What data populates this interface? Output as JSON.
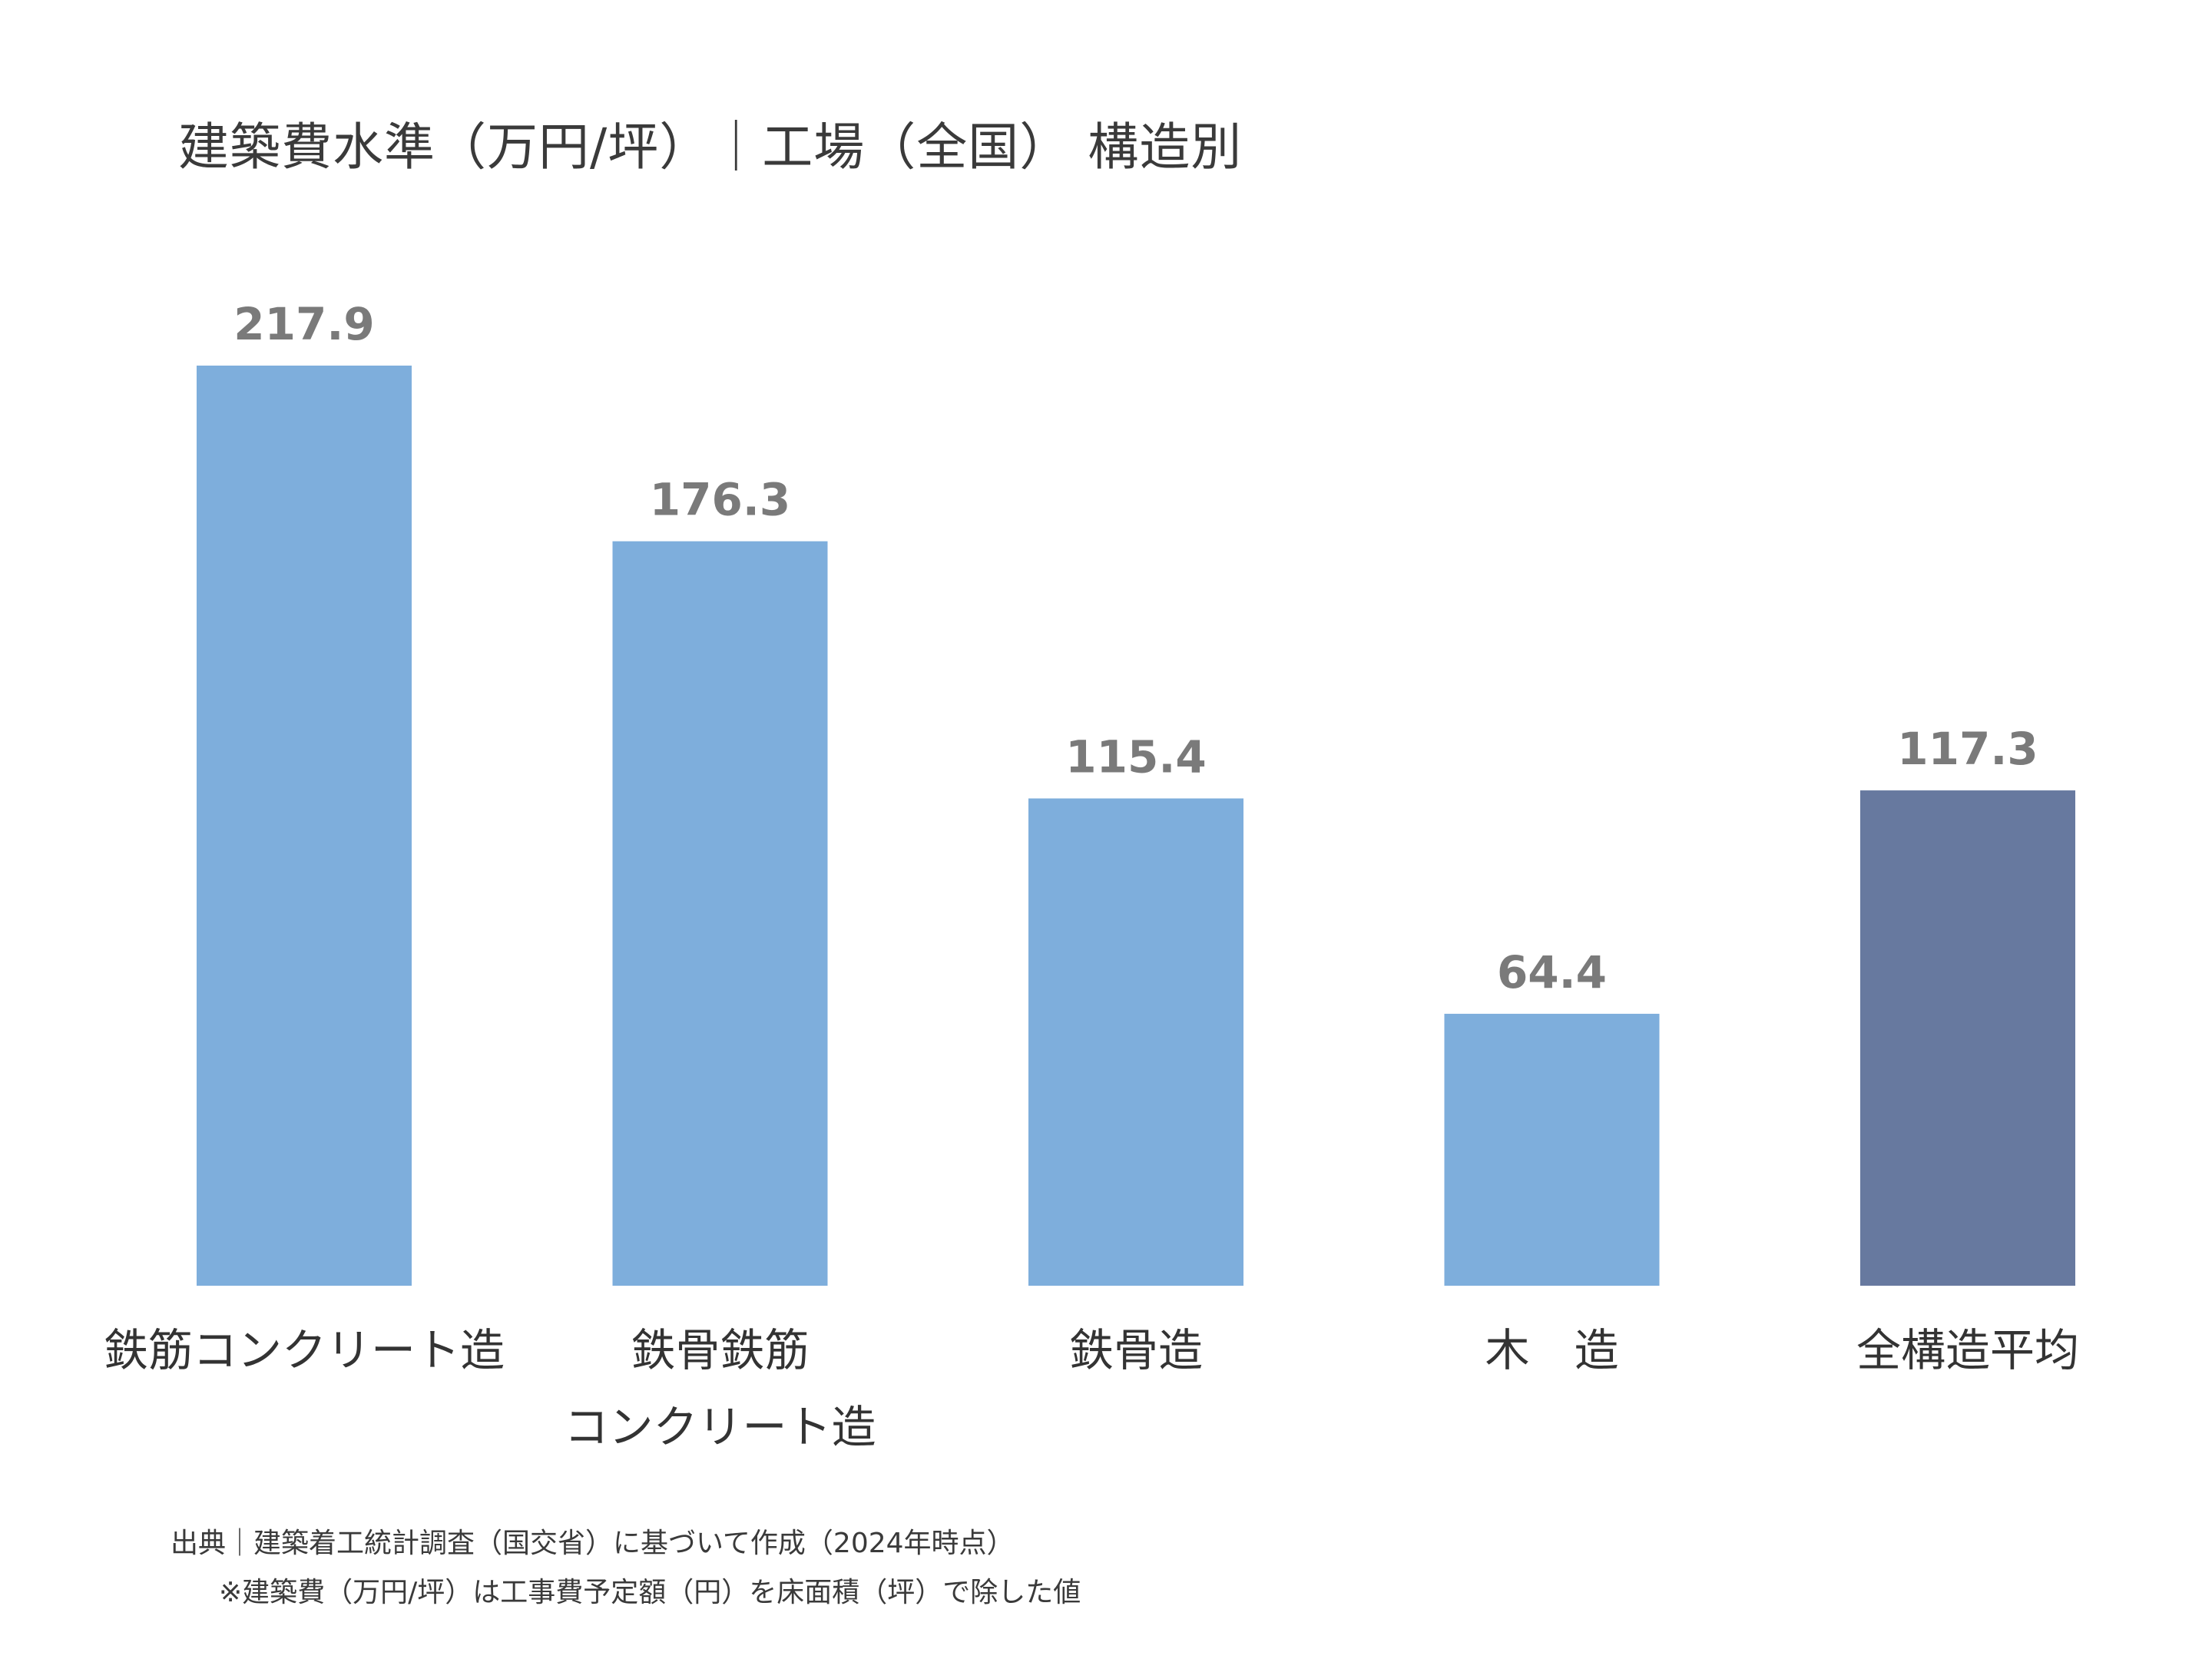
{
  "chart_data": {
    "type": "bar",
    "title": "建築費水準（万円/坪）｜工場（全国） 構造別",
    "categories": [
      [
        "鉄筋コンクリート造"
      ],
      [
        "鉄骨鉄筋",
        "コンクリート造"
      ],
      [
        "鉄骨造"
      ],
      [
        "木　造"
      ],
      [
        "全構造平均"
      ]
    ],
    "values": [
      217.9,
      176.3,
      115.4,
      64.4,
      117.3
    ],
    "value_labels": [
      "217.9",
      "176.3",
      "115.4",
      "64.4",
      "117.3"
    ],
    "bar_colors": [
      "#7eaedc",
      "#7eaedc",
      "#7eaedc",
      "#7eaedc",
      "#67799f"
    ],
    "xlabel": "",
    "ylabel": "",
    "ylim": [
      0,
      217.9
    ],
    "grid": false,
    "legend": "none"
  },
  "footnotes": {
    "source": "出典｜建築着工統計調査（国交省）に基づいて作成（2024年時点）",
    "calculation": "※建築費（万円/坪）は工事費予定額（円）を床面積（坪）で除した値"
  },
  "colors": {
    "bar": "#7eaedc",
    "bar_average": "#67799f",
    "value_label": "#7a7a7a",
    "text": "#333333"
  }
}
